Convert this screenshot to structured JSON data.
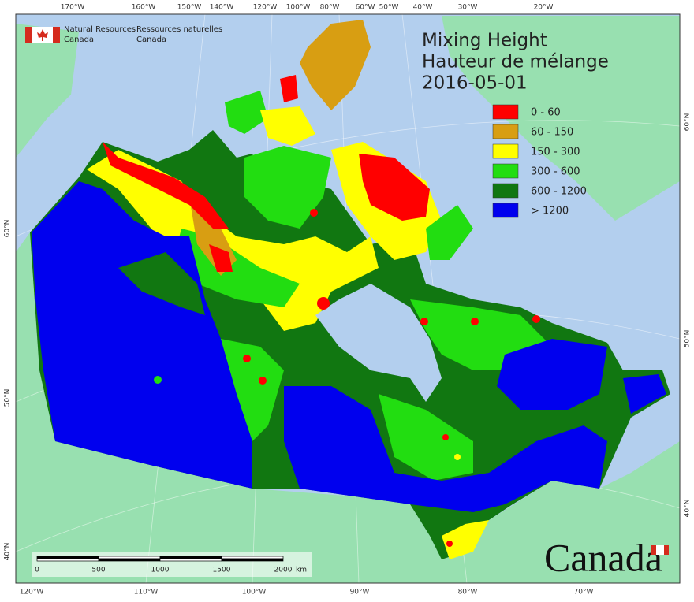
{
  "header": {
    "org_en": [
      "Natural Resources",
      "Canada"
    ],
    "org_fr": [
      "Ressources naturelles",
      "Canada"
    ]
  },
  "title": [
    "Mixing Height",
    "Hauteur de mélange",
    "2016-05-01"
  ],
  "legend": [
    {
      "label": "0 - 60",
      "color": "#ff0000"
    },
    {
      "label": "60 - 150",
      "color": "#d89e12"
    },
    {
      "label": "150 - 300",
      "color": "#ffff00"
    },
    {
      "label": "300 - 600",
      "color": "#22dd11"
    },
    {
      "label": "600 - 1200",
      "color": "#117711"
    },
    {
      "label": "> 1200",
      "color": "#0000ee"
    }
  ],
  "graticule": {
    "top": [
      "170°W",
      "160°W",
      "150°W",
      "140°W",
      "120°W",
      "100°W",
      "80°W",
      "60°W",
      "50°W",
      "40°W",
      "30°W",
      "20°W"
    ],
    "bottom": [
      "120°W",
      "110°W",
      "100°W",
      "90°W",
      "80°W",
      "70°W"
    ],
    "left": [
      "60°N",
      "50°N",
      "40°N"
    ],
    "right": [
      "60°N",
      "50°N",
      "40°N"
    ]
  },
  "scale_bar": {
    "ticks": [
      0,
      500,
      1000,
      1500,
      2000
    ],
    "unit": "km"
  },
  "wordmark": "Canada"
}
